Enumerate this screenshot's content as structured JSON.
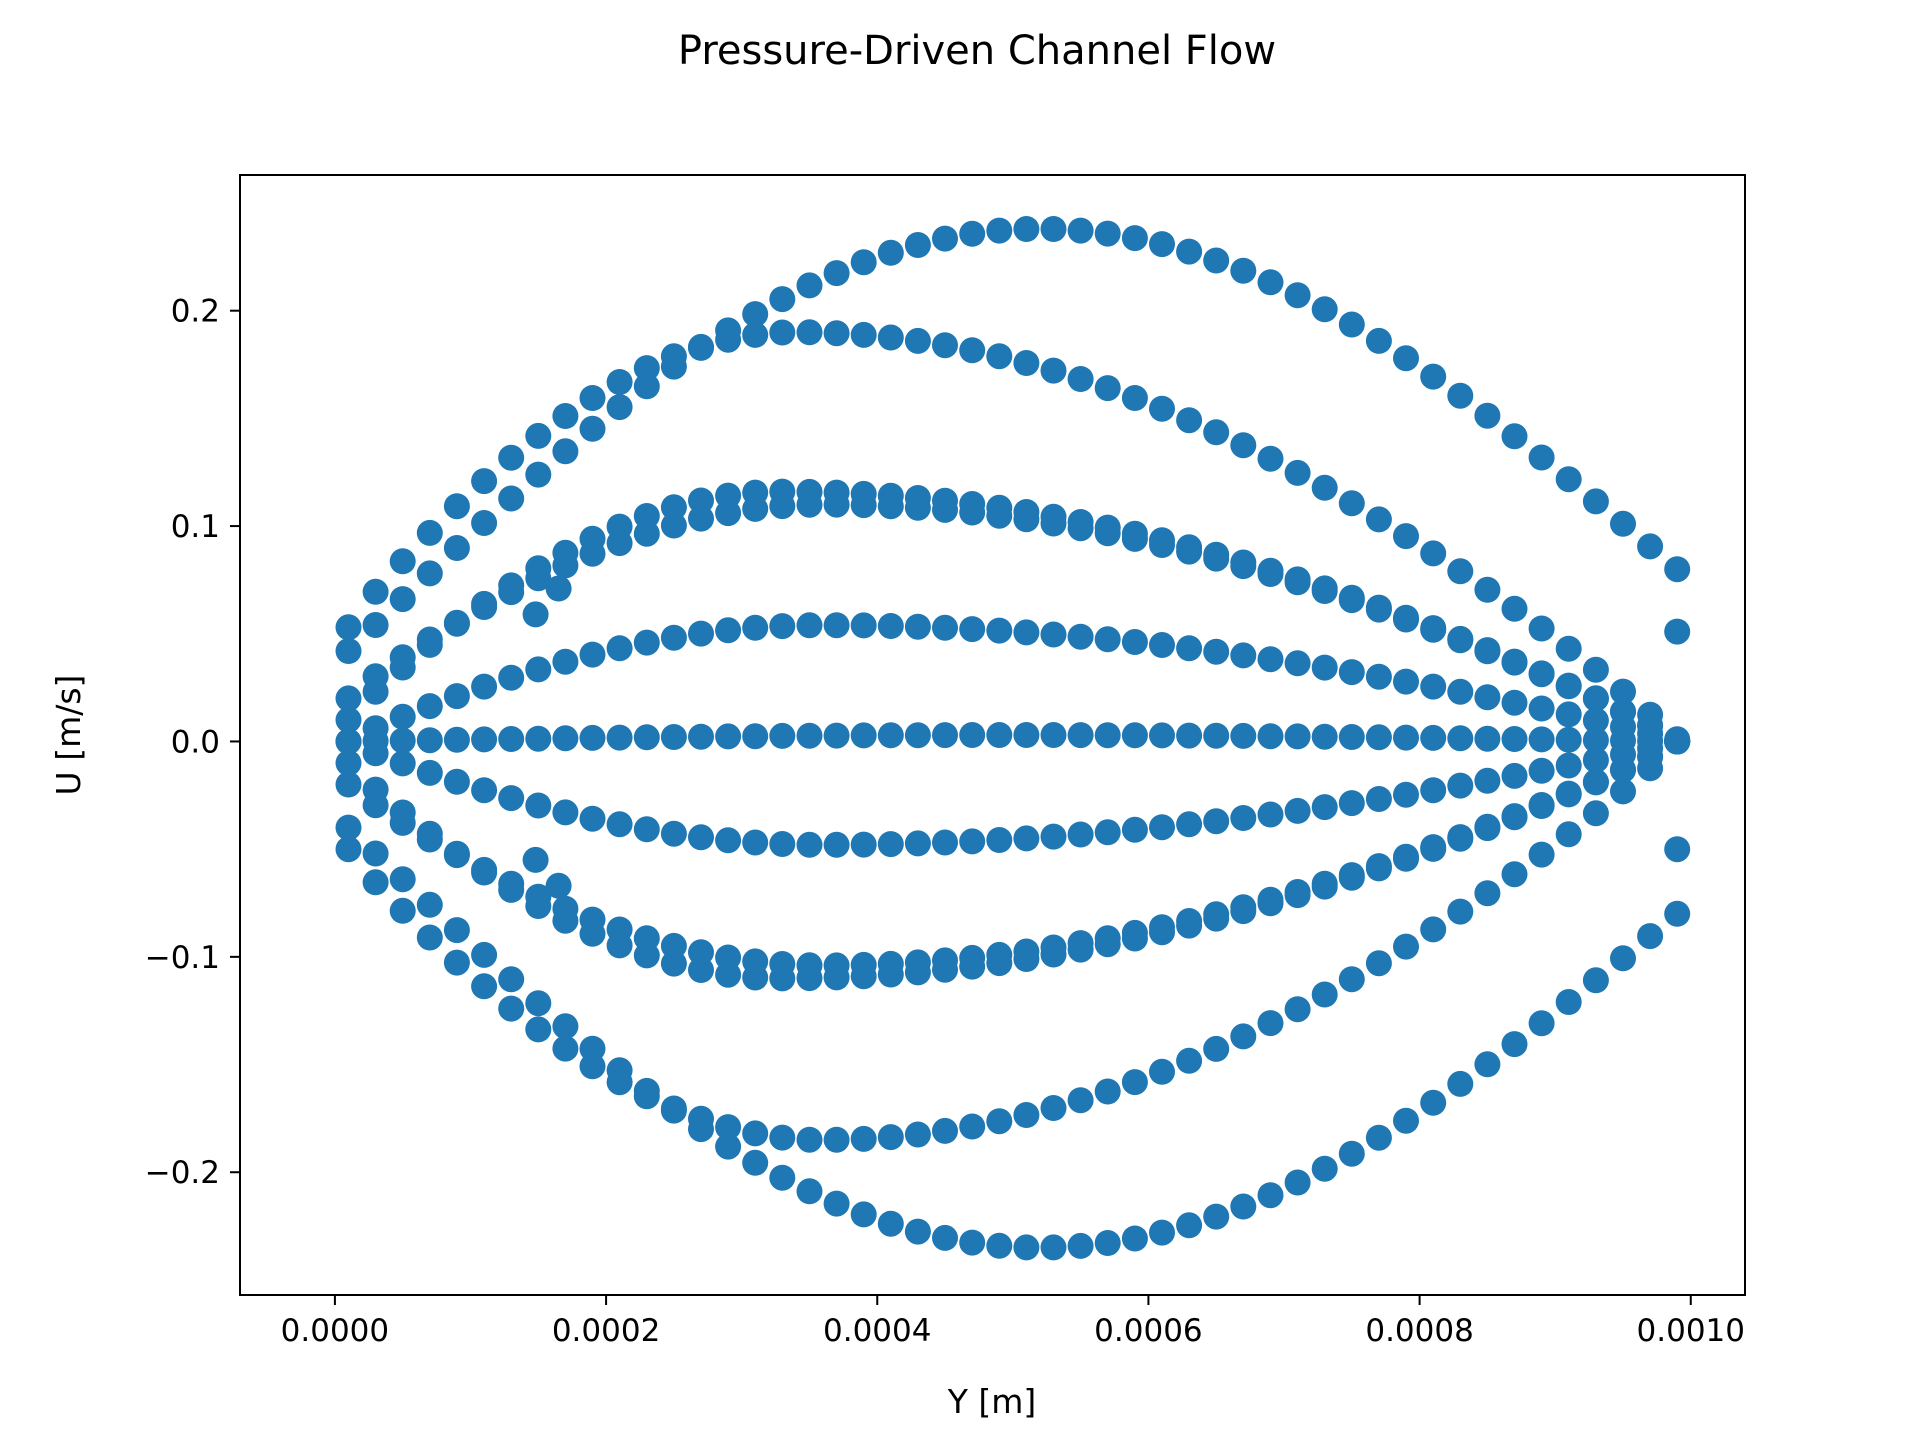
{
  "chart_data": {
    "type": "scatter",
    "title": "Pressure-Driven Channel Flow",
    "xlabel": "Y [m]",
    "ylabel": "U [m/s]",
    "xlim": [
      -7e-05,
      0.00104
    ],
    "ylim": [
      -0.257,
      0.263
    ],
    "x_ticks": [
      0.0,
      0.0002,
      0.0004,
      0.0006,
      0.0008,
      0.001
    ],
    "x_tick_labels": [
      "0.0000",
      "0.0002",
      "0.0004",
      "0.0006",
      "0.0008",
      "0.0010"
    ],
    "y_ticks": [
      -0.2,
      -0.1,
      0.0,
      0.1,
      0.2
    ],
    "y_tick_labels": [
      "−0.2",
      "−0.1",
      "0.0",
      "0.1",
      "0.2"
    ],
    "grid": false,
    "legend": "none",
    "marker_color": "#1f77b4",
    "x_range": [
      1e-05,
      0.00099
    ],
    "point_count_per_profile": 50,
    "series": [
      {
        "profile": "sine-lobe",
        "peak_x": 0.00052,
        "amplitude": 0.238,
        "start_value": 0.042,
        "end_value": 0.08
      },
      {
        "profile": "sine-lobe",
        "peak_x": 0.00052,
        "amplitude": -0.235,
        "start_value": -0.04,
        "end_value": -0.08
      },
      {
        "profile": "skewed-lobe",
        "peak_x": 0.00034,
        "amplitude": 0.19,
        "start_value": 0.053,
        "end_value": 0.0
      },
      {
        "profile": "skewed-lobe",
        "peak_x": 0.00036,
        "amplitude": -0.185,
        "start_value": -0.05,
        "end_value": 0.0
      },
      {
        "profile": "skewed-lobe",
        "peak_x": 0.00033,
        "amplitude": 0.116,
        "start_value": 0.01,
        "end_value": 0.0
      },
      {
        "profile": "skewed-lobe",
        "peak_x": 0.00036,
        "amplitude": 0.11,
        "start_value": 0.02,
        "end_value": 0.0
      },
      {
        "profile": "skewed-lobe",
        "peak_x": 0.00033,
        "amplitude": -0.11,
        "start_value": -0.01,
        "end_value": 0.0
      },
      {
        "profile": "skewed-lobe",
        "peak_x": 0.00036,
        "amplitude": -0.104,
        "start_value": -0.02,
        "end_value": 0.0
      },
      {
        "profile": "skewed-lobe",
        "peak_x": 0.00036,
        "amplitude": 0.054,
        "start_value": 0.0,
        "end_value": 0.0
      },
      {
        "profile": "skewed-lobe",
        "peak_x": 0.00036,
        "amplitude": -0.048,
        "start_value": 0.0,
        "end_value": 0.0
      },
      {
        "profile": "flat",
        "peak_x": 0.0005,
        "amplitude": 0.003,
        "start_value": 0.0,
        "end_value": 0.0
      }
    ],
    "extra_points": [
      {
        "x": 0.00099,
        "y": 0.051
      },
      {
        "x": 0.00099,
        "y": -0.05
      },
      {
        "x": 0.00099,
        "y": 0.001
      },
      {
        "x": 0.000165,
        "y": 0.071
      },
      {
        "x": 0.000165,
        "y": -0.067
      },
      {
        "x": 0.000148,
        "y": 0.059
      },
      {
        "x": 0.000148,
        "y": -0.055
      }
    ]
  }
}
